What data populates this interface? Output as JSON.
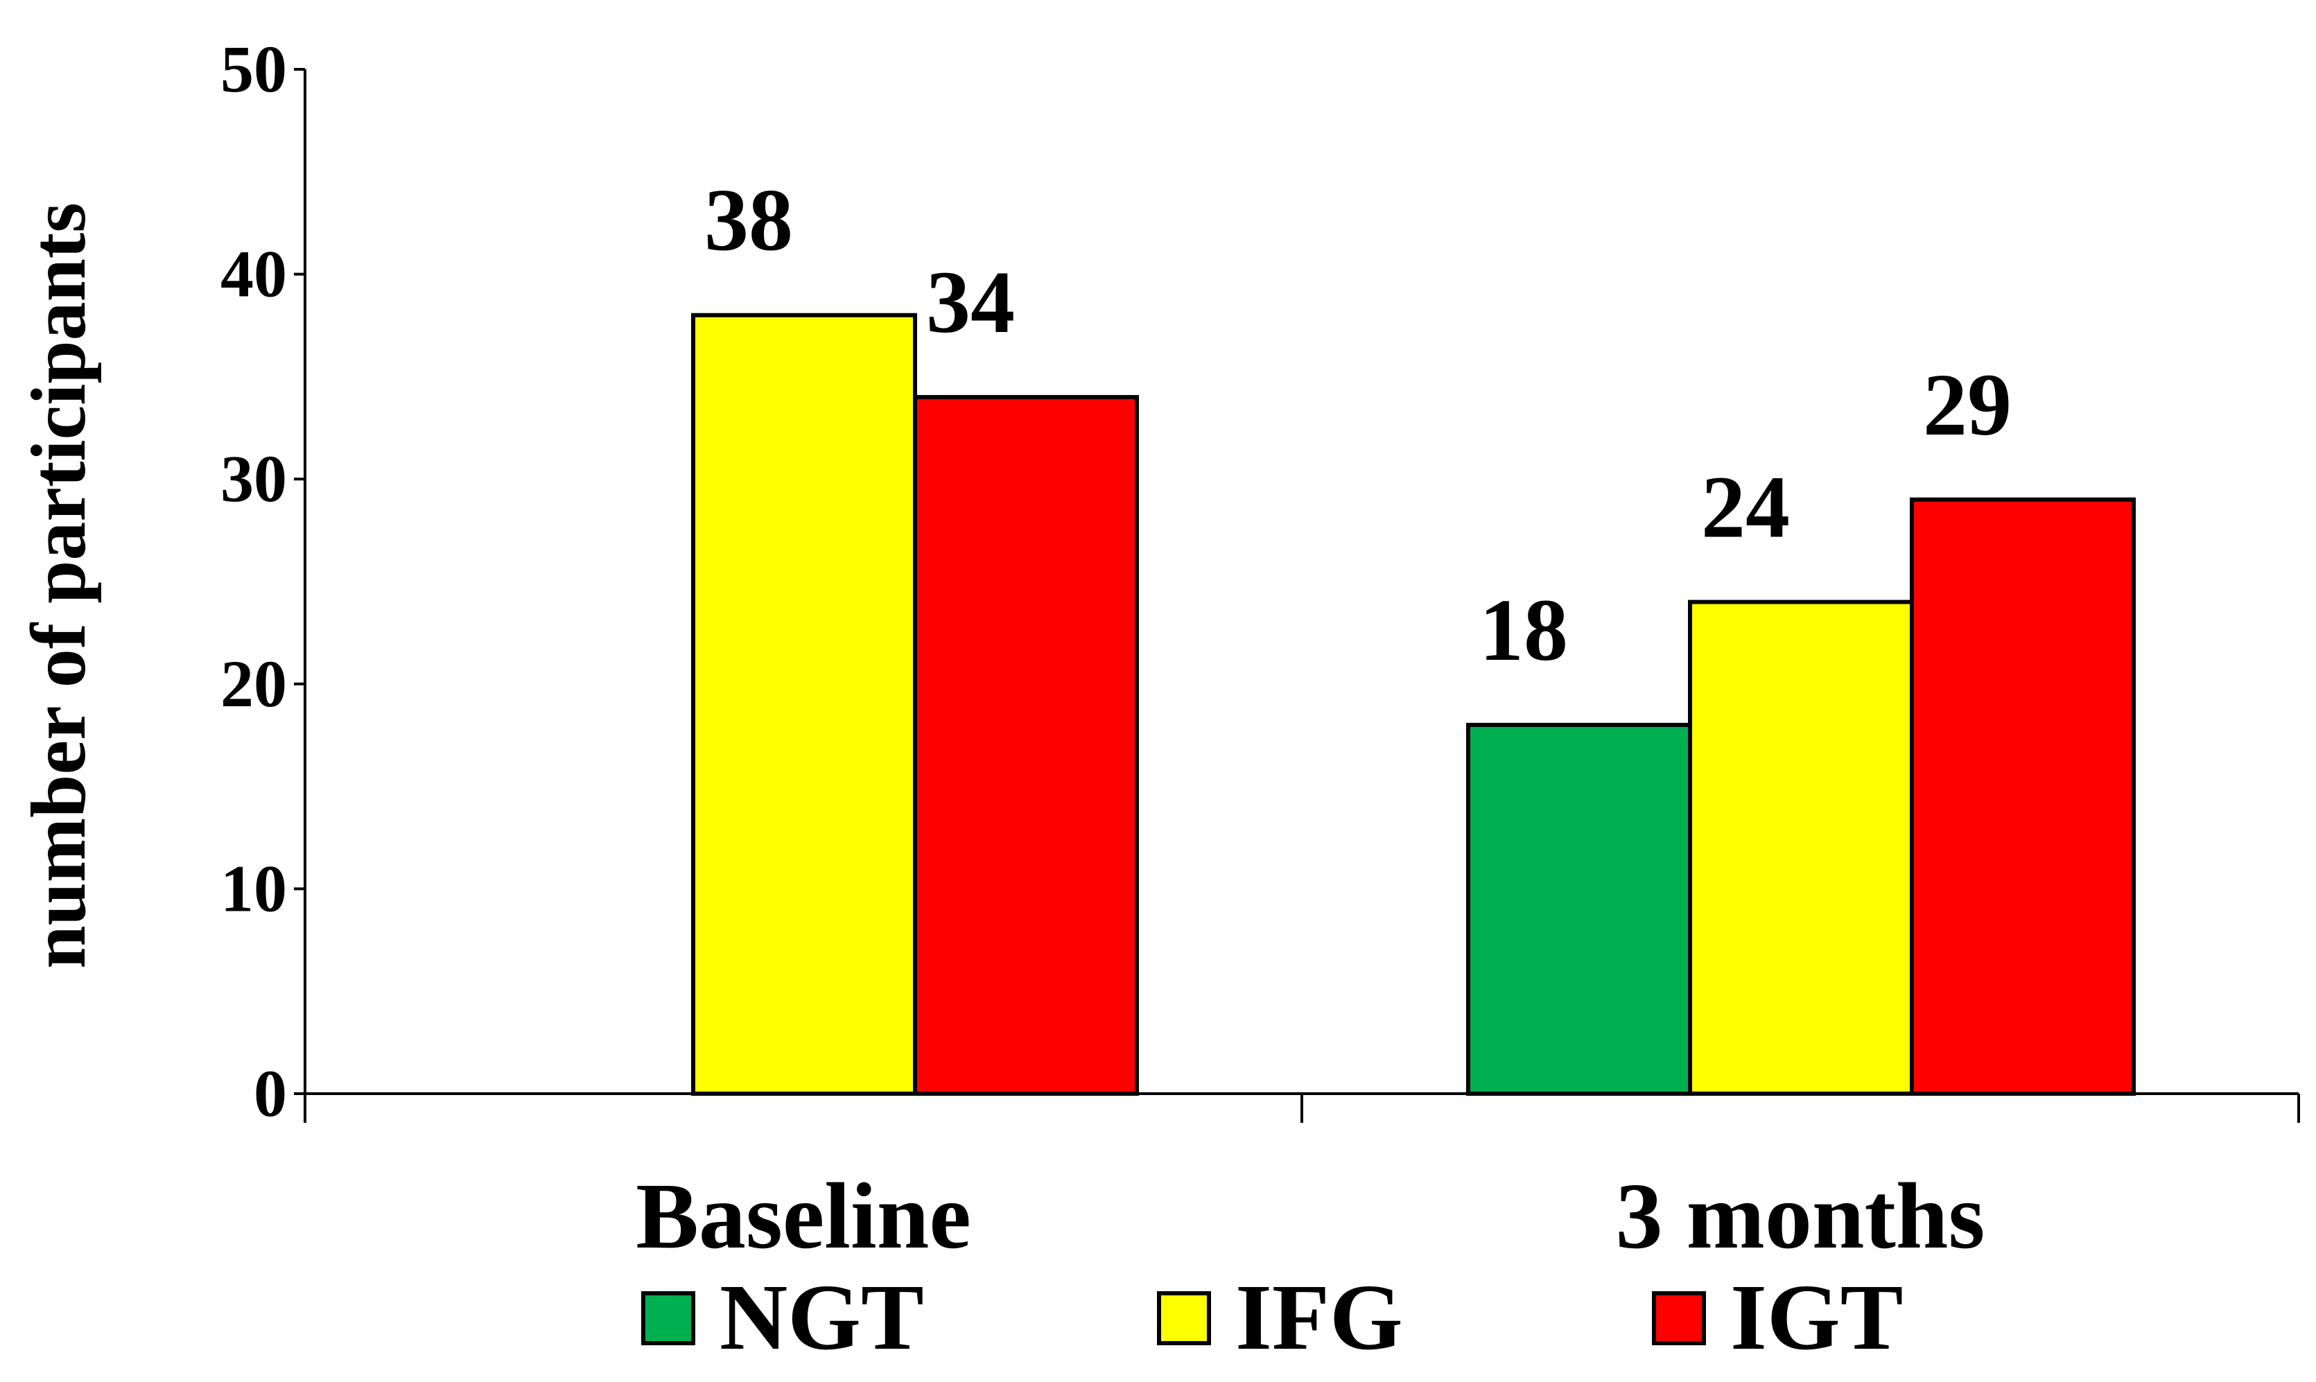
{
  "chart_data": {
    "type": "bar",
    "categories": [
      "Baseline",
      "3 months"
    ],
    "series": [
      {
        "name": "NGT",
        "color": "#00b050",
        "values": [
          null,
          18
        ]
      },
      {
        "name": "IFG",
        "color": "#ffff00",
        "values": [
          38,
          24
        ]
      },
      {
        "name": "IGT",
        "color": "#ff0000",
        "values": [
          34,
          29
        ]
      }
    ],
    "title": "",
    "xlabel": "",
    "ylabel": "number of participants",
    "ylim": [
      0,
      50
    ],
    "yticks": [
      0,
      10,
      20,
      30,
      40,
      50
    ],
    "grid": false,
    "legend_position": "bottom"
  }
}
